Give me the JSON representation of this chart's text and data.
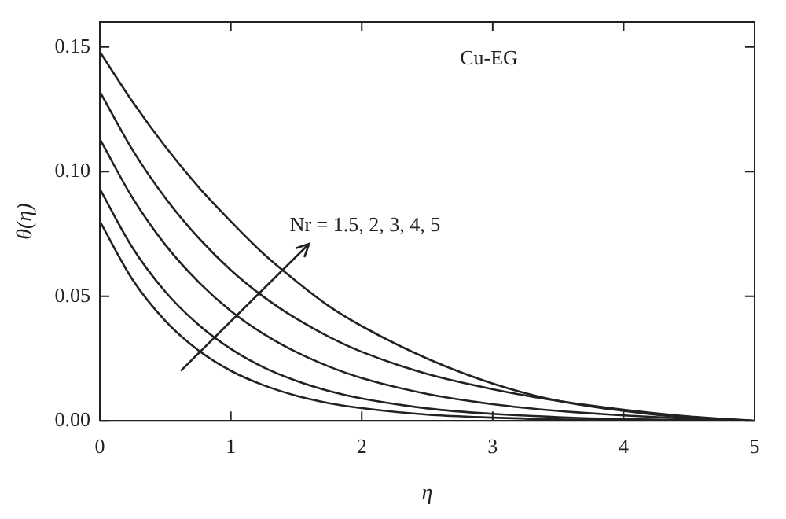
{
  "chart_data": {
    "type": "line",
    "xlabel": "η",
    "ylabel": "θ(η)",
    "annotations": [
      "Cu-EG",
      "Nr = 1.5, 2, 3, 4, 5"
    ],
    "x": [
      0,
      0.25,
      0.5,
      0.75,
      1,
      1.25,
      1.5,
      1.75,
      2,
      2.5,
      3,
      3.5,
      4,
      4.5,
      5
    ],
    "series": [
      {
        "color": "#222222",
        "values": [
          0.08,
          0.0566,
          0.0401,
          0.0284,
          0.0201,
          0.0143,
          0.0101,
          0.0071,
          0.0051,
          0.0025,
          0.0013,
          0.0006,
          0.0002,
          0.0001,
          0
        ]
      },
      {
        "color": "#222222",
        "values": [
          0.093,
          0.0694,
          0.0518,
          0.0387,
          0.0289,
          0.0215,
          0.0161,
          0.012,
          0.009,
          0.005,
          0.0028,
          0.0015,
          0.0007,
          0.0003,
          0
        ]
      },
      {
        "color": "#222222",
        "values": [
          0.113,
          0.0894,
          0.0706,
          0.0559,
          0.0441,
          0.0349,
          0.0276,
          0.0218,
          0.0172,
          0.0108,
          0.0067,
          0.004,
          0.0022,
          0.0009,
          0
        ]
      },
      {
        "color": "#222222",
        "values": [
          0.132,
          0.1086,
          0.0894,
          0.0736,
          0.0605,
          0.0498,
          0.041,
          0.0337,
          0.0277,
          0.0188,
          0.0127,
          0.008,
          0.0045,
          0.0018,
          0
        ]
      },
      {
        "color": "#222222",
        "values": [
          0.148,
          0.128,
          0.11,
          0.094,
          0.08,
          0.067,
          0.056,
          0.046,
          0.038,
          0.025,
          0.015,
          0.008,
          0.004,
          0.0012,
          0
        ]
      }
    ],
    "xlim": [
      0,
      5
    ],
    "xticks": [
      0,
      1,
      2,
      3,
      4,
      5
    ],
    "ylim": [
      0,
      0.16
    ],
    "yticks": [
      {
        "value": 0,
        "label": "0.00"
      },
      {
        "value": 0.05,
        "label": "0.05"
      },
      {
        "value": 0.1,
        "label": "0.10"
      },
      {
        "value": 0.15,
        "label": "0.15"
      }
    ],
    "grid": false,
    "legend": false,
    "marker": "none",
    "line_style": "solid"
  }
}
